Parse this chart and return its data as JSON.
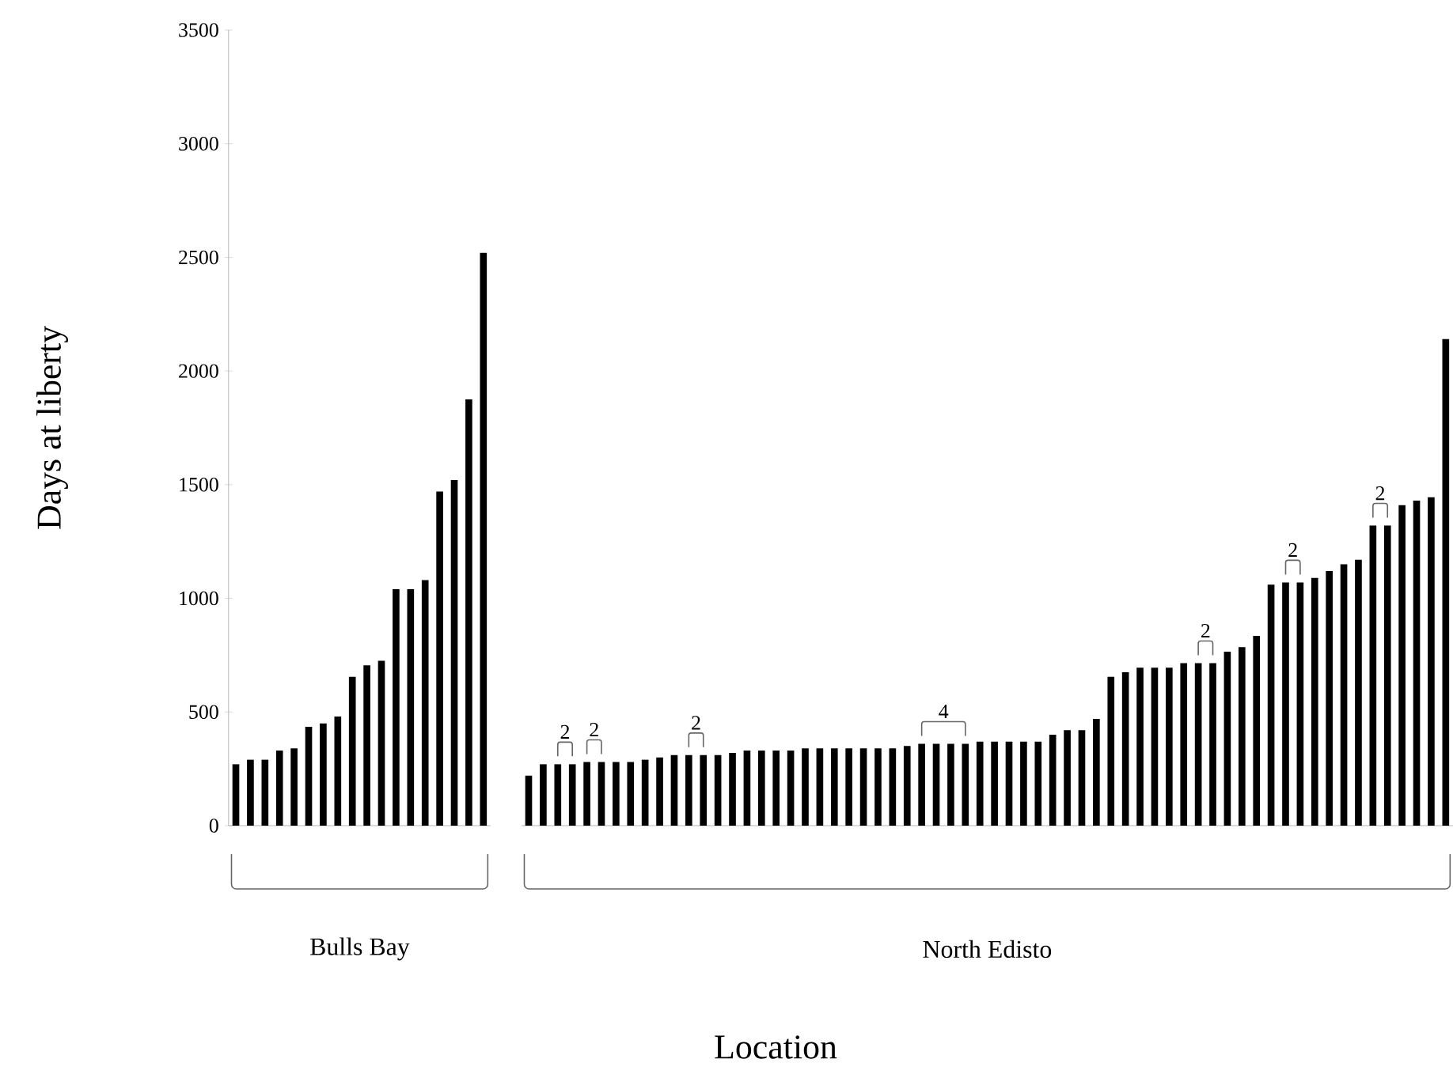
{
  "chart_data": [
    {
      "type": "bar",
      "xlabel": "Bulls Bay",
      "ylabel": "Days at liberty",
      "color": "#000000",
      "categories": [
        null,
        null,
        null,
        null,
        null,
        null,
        null,
        null,
        null,
        null,
        null,
        null,
        null,
        null,
        null,
        null,
        null,
        null
      ],
      "values": [
        270,
        290,
        290,
        330,
        340,
        435,
        450,
        480,
        655,
        705,
        725,
        1040,
        1040,
        1080,
        1470,
        1520,
        1875,
        2520
      ],
      "ylim": [
        0,
        3500
      ],
      "yticks": [
        0,
        500,
        1000,
        1500,
        2000,
        2500,
        3000,
        3500
      ]
    },
    {
      "type": "bar",
      "xlabel": "North Edisto",
      "color": "#000000",
      "tick_labels": false,
      "categories": [
        null,
        null,
        null,
        null,
        null,
        null,
        null,
        null,
        null,
        null,
        null,
        null,
        null,
        null,
        null,
        null,
        null,
        null,
        null,
        null,
        null,
        null,
        null,
        null,
        null,
        null,
        null,
        null,
        null,
        null,
        null,
        null,
        null,
        null,
        null,
        null,
        null,
        null,
        null,
        null,
        null,
        null,
        null,
        null,
        null,
        null,
        null,
        null,
        null,
        null,
        null,
        null,
        null,
        null,
        null,
        null,
        null,
        null,
        null,
        null,
        null,
        null,
        null,
        null
      ],
      "values": [
        220,
        270,
        270,
        270,
        280,
        280,
        280,
        280,
        290,
        300,
        310,
        310,
        310,
        310,
        320,
        330,
        330,
        330,
        330,
        340,
        340,
        340,
        340,
        340,
        340,
        340,
        350,
        360,
        360,
        360,
        360,
        370,
        370,
        370,
        370,
        370,
        400,
        420,
        420,
        470,
        655,
        675,
        695,
        695,
        695,
        715,
        715,
        715,
        765,
        785,
        835,
        1060,
        1070,
        1070,
        1090,
        1120,
        1150,
        1170,
        1320,
        1320,
        1410,
        1430,
        1445,
        2140
      ],
      "ylim": [
        0,
        3500
      ],
      "yticks": [
        0,
        500,
        1000,
        1500,
        2000,
        2500,
        3000,
        3500
      ],
      "annotations": [
        "2",
        "2",
        "2",
        "4",
        "2",
        "2",
        "2",
        "Location"
      ]
    }
  ]
}
